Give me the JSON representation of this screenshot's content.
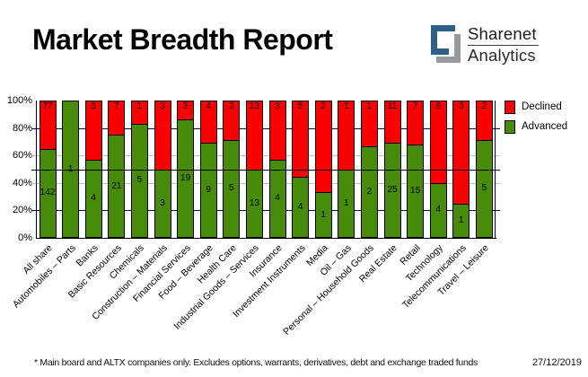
{
  "title": "Market Breadth Report",
  "logo": {
    "name": "Sharenet",
    "sub": "Analytics",
    "icon_blue": "#2d5f8a",
    "icon_gray": "#97999c"
  },
  "legend": {
    "position": "right-top",
    "items": [
      {
        "label": "Declined",
        "color": "#fb0000"
      },
      {
        "label": "Advanced",
        "color": "#478b0a"
      }
    ]
  },
  "chart_data": {
    "type": "bar",
    "stacked": true,
    "normalized_to_100pct": true,
    "title": "Market Breadth Report",
    "categories": [
      "All share",
      "Automobiles – Parts",
      "Banks",
      "Basic Resources",
      "Chemicals",
      "Construction – Materials",
      "Financial Services",
      "Food – Beverage",
      "Health Care",
      "Industrial Goods – Services",
      "Insurance",
      "Investment Instruments",
      "Media",
      "Oil – Gas",
      "Personal – Household Goods",
      "Real Estate",
      "Retail",
      "Technology",
      "Telecommunications",
      "Travel – Leisure"
    ],
    "series": [
      {
        "name": "Declined",
        "color": "#fb0000",
        "values": [
          77,
          0,
          3,
          7,
          1,
          3,
          3,
          4,
          2,
          13,
          3,
          5,
          2,
          1,
          1,
          11,
          7,
          6,
          3,
          2
        ]
      },
      {
        "name": "Advanced",
        "color": "#478b0a",
        "values": [
          142,
          1,
          4,
          21,
          5,
          3,
          19,
          9,
          5,
          13,
          4,
          4,
          1,
          1,
          2,
          25,
          15,
          4,
          1,
          5
        ]
      }
    ],
    "ylim": [
      0,
      100
    ],
    "y_ticks": [
      {
        "label": "100%",
        "pct": 100
      },
      {
        "label": "80%",
        "pct": 80
      },
      {
        "label": "60%",
        "pct": 60
      },
      {
        "label": "40%",
        "pct": 40
      },
      {
        "label": "20%",
        "pct": 20
      },
      {
        "label": "0%",
        "pct": 0
      }
    ],
    "gridlines": [
      {
        "pct": 80,
        "color": "#000070"
      },
      {
        "pct": 60,
        "color": "#bdbfc1"
      },
      {
        "pct": 40,
        "color": "#bdbfc1"
      },
      {
        "pct": 20,
        "color": "#000070"
      }
    ],
    "reference_line_pct": 50,
    "bar_labels": "counts shown inside segments",
    "grid": true,
    "legend_position": "right"
  },
  "footnote": {
    "text": "* Main board and ALTX companies only. Excludes options, warrants, derivatives, debt and exchange traded funds",
    "date": "27/12/2019"
  }
}
